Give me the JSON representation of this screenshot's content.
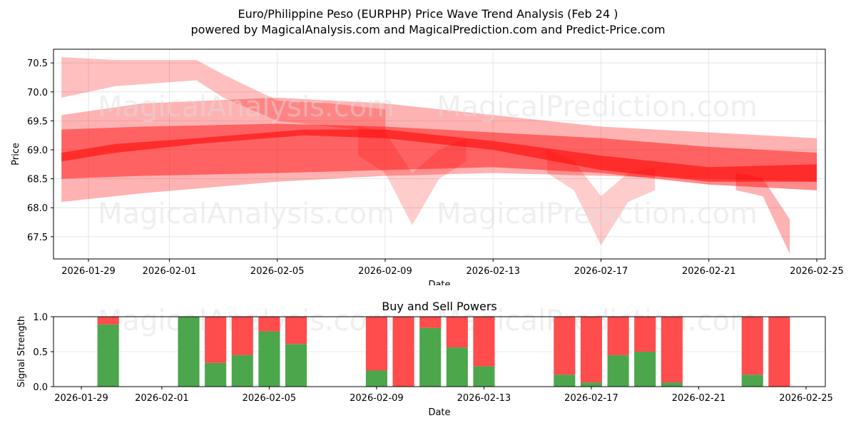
{
  "header": {
    "title": "Euro/Philippine Peso (EURPHP) Price Wave Trend Analysis (Feb 24 )",
    "subtitle": "powered by MagicalAnalysis.com and MagicalPrediction.com and Predict-Price.com"
  },
  "watermarks": [
    "MagicalAnalysis.com",
    "MagicalPrediction.com"
  ],
  "colors": {
    "band": "#ff0000",
    "buy": "#4ca64c",
    "sell": "#ff4c4c",
    "grid": "#e0e0e0",
    "watermark": "#dddddd"
  },
  "chart_data": [
    {
      "type": "area",
      "title": "Euro/Philippine Peso (EURPHP) Price Wave Trend Analysis (Feb 24 )",
      "xlabel": "Date",
      "ylabel": "Price",
      "ylim": [
        67.1,
        70.72
      ],
      "yticks": [
        67.5,
        68.0,
        68.5,
        69.0,
        69.5,
        70.0,
        70.5
      ],
      "xticks": [
        "2026-01-29",
        "2026-02-01",
        "2026-02-05",
        "2026-02-09",
        "2026-02-13",
        "2026-02-17",
        "2026-02-21",
        "2026-02-25"
      ],
      "grid": true,
      "description": "Overlapping semi-transparent red wave bands showing projected price ranges; overall trend declines from ~69.3 to ~68.6",
      "series": [
        {
          "name": "band-wide-lower",
          "opacity": 0.3,
          "x": [
            "2026-01-28",
            "2026-01-31",
            "2026-02-05",
            "2026-02-09",
            "2026-02-13",
            "2026-02-17",
            "2026-02-21",
            "2026-02-25"
          ],
          "upper": [
            69.6,
            69.8,
            69.9,
            69.8,
            69.6,
            69.4,
            69.3,
            69.2
          ],
          "lower": [
            68.1,
            68.25,
            68.45,
            68.55,
            68.6,
            68.55,
            68.5,
            68.45
          ]
        },
        {
          "name": "band-core",
          "opacity": 0.45,
          "x": [
            "2026-01-28",
            "2026-01-31",
            "2026-02-05",
            "2026-02-09",
            "2026-02-13",
            "2026-02-17",
            "2026-02-21",
            "2026-02-25"
          ],
          "upper": [
            69.35,
            69.4,
            69.45,
            69.4,
            69.3,
            69.2,
            69.05,
            68.95
          ],
          "lower": [
            68.5,
            68.55,
            68.6,
            68.65,
            68.7,
            68.6,
            68.4,
            68.3
          ]
        },
        {
          "name": "band-trend",
          "opacity": 0.55,
          "x": [
            "2026-01-28",
            "2026-01-30",
            "2026-02-02",
            "2026-02-06",
            "2026-02-09",
            "2026-02-13",
            "2026-02-17",
            "2026-02-21",
            "2026-02-25"
          ],
          "upper": [
            68.95,
            69.1,
            69.2,
            69.35,
            69.35,
            69.15,
            68.9,
            68.7,
            68.75
          ],
          "lower": [
            68.8,
            68.95,
            69.1,
            69.25,
            69.2,
            69.0,
            68.65,
            68.45,
            68.45
          ]
        },
        {
          "name": "band-upper-early",
          "opacity": 0.25,
          "x": [
            "2026-01-28",
            "2026-01-30",
            "2026-02-02",
            "2026-02-03",
            "2026-02-05",
            "2026-02-07",
            "2026-02-09"
          ],
          "upper": [
            70.6,
            70.55,
            70.55,
            70.3,
            69.85,
            69.8,
            69.7
          ],
          "lower": [
            69.9,
            70.1,
            70.2,
            69.9,
            69.5,
            69.4,
            69.3
          ]
        },
        {
          "name": "band-dip-feb10",
          "opacity": 0.2,
          "x": [
            "2026-02-08",
            "2026-02-09",
            "2026-02-10",
            "2026-02-11",
            "2026-02-12"
          ],
          "upper": [
            69.4,
            69.3,
            68.6,
            69.0,
            69.2
          ],
          "lower": [
            68.9,
            68.6,
            67.7,
            68.5,
            68.8
          ]
        },
        {
          "name": "band-dip-feb17",
          "opacity": 0.2,
          "x": [
            "2026-02-15",
            "2026-02-16",
            "2026-02-17",
            "2026-02-18",
            "2026-02-19"
          ],
          "upper": [
            69.0,
            68.8,
            68.2,
            68.6,
            68.7
          ],
          "lower": [
            68.6,
            68.3,
            67.35,
            68.1,
            68.3
          ]
        },
        {
          "name": "band-drop-feb24",
          "opacity": 0.3,
          "x": [
            "2026-02-22",
            "2026-02-23",
            "2026-02-24"
          ],
          "upper": [
            68.6,
            68.5,
            67.8
          ],
          "lower": [
            68.3,
            68.2,
            67.2
          ]
        }
      ]
    },
    {
      "type": "bar",
      "stacked": true,
      "title": "Buy and Sell Powers",
      "xlabel": "Date",
      "ylabel": "Signal Strength",
      "ylim": [
        0,
        1.0
      ],
      "yticks": [
        0.0,
        0.5,
        1.0
      ],
      "xticks": [
        "2026-01-29",
        "2026-02-01",
        "2026-02-05",
        "2026-02-09",
        "2026-02-13",
        "2026-02-17",
        "2026-02-21",
        "2026-02-25"
      ],
      "grid": true,
      "categories": [
        "2026-01-30",
        "2026-02-02",
        "2026-02-03",
        "2026-02-04",
        "2026-02-05",
        "2026-02-06",
        "2026-02-09",
        "2026-02-10",
        "2026-02-11",
        "2026-02-12",
        "2026-02-13",
        "2026-02-16",
        "2026-02-17",
        "2026-02-18",
        "2026-02-19",
        "2026-02-20",
        "2026-02-23",
        "2026-02-24"
      ],
      "series": [
        {
          "name": "Buy",
          "color": "#4ca64c",
          "values": [
            0.89,
            1.0,
            0.34,
            0.45,
            0.79,
            0.61,
            0.23,
            0.0,
            0.84,
            0.56,
            0.29,
            0.17,
            0.06,
            0.45,
            0.5,
            0.06,
            0.17,
            0.0
          ]
        },
        {
          "name": "Sell",
          "color": "#ff4c4c",
          "values": [
            0.11,
            0.0,
            0.66,
            0.55,
            0.21,
            0.39,
            0.77,
            1.0,
            0.16,
            0.44,
            0.71,
            0.83,
            0.94,
            0.55,
            0.5,
            0.94,
            0.83,
            1.0
          ]
        }
      ]
    }
  ]
}
